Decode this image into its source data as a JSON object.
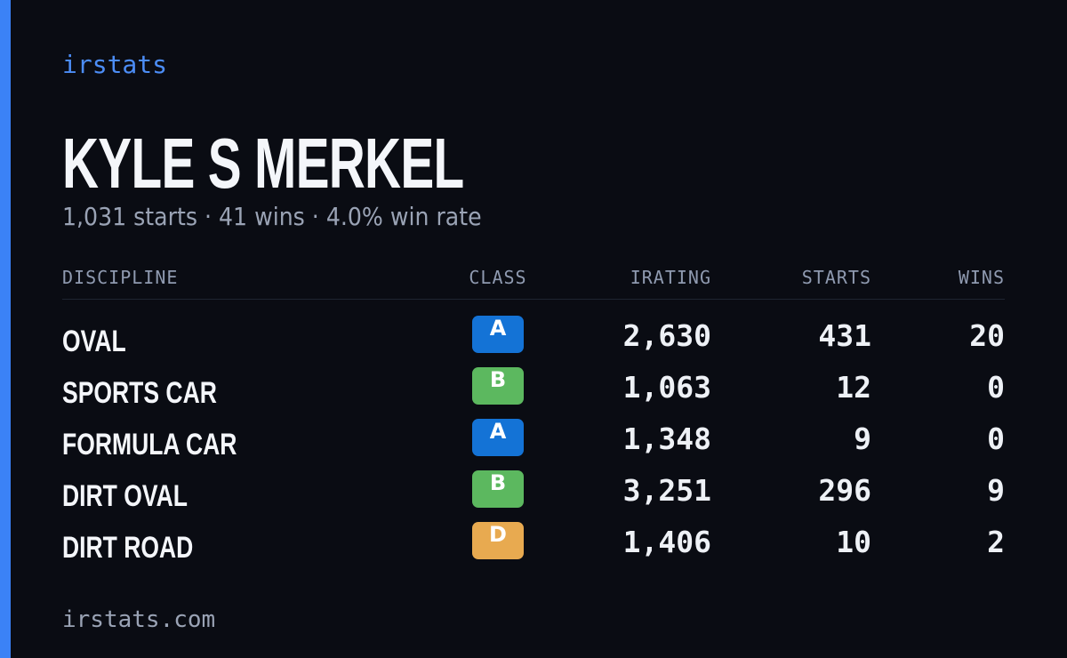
{
  "header": {
    "brand": "irstats",
    "name": "KYLE S MERKEL",
    "summary": "1,031 starts · 41 wins · 4.0% win rate"
  },
  "table": {
    "columns": [
      "DISCIPLINE",
      "CLASS",
      "IRATING",
      "STARTS",
      "WINS"
    ],
    "rows": [
      [
        "OVAL",
        "A",
        "2,630",
        "431",
        "20"
      ],
      [
        "SPORTS CAR",
        "B",
        "1,063",
        "12",
        "0"
      ],
      [
        "FORMULA CAR",
        "A",
        "1,348",
        "9",
        "0"
      ],
      [
        "DIRT OVAL",
        "B",
        "3,251",
        "296",
        "9"
      ],
      [
        "DIRT ROAD",
        "D",
        "1,406",
        "10",
        "2"
      ]
    ]
  },
  "footer": {
    "site": "irstats.com"
  }
}
